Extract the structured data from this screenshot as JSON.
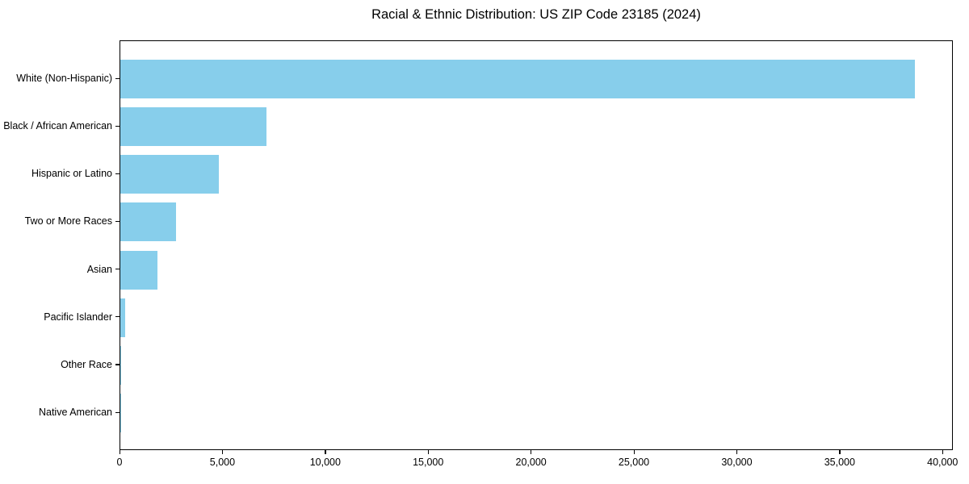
{
  "chart_data": {
    "type": "bar",
    "orientation": "horizontal",
    "title": "Racial & Ethnic Distribution: US ZIP Code 23185 (2024)",
    "categories": [
      "White (Non-Hispanic)",
      "Black / African American",
      "Hispanic or Latino",
      "Two or More Races",
      "Asian",
      "Pacific Islander",
      "Other Race",
      "Native American"
    ],
    "values": [
      38600,
      7100,
      4800,
      2700,
      1800,
      235,
      50,
      25
    ],
    "xlabel": "",
    "ylabel": "",
    "xlim": [
      0,
      40500
    ],
    "x_ticks": [
      0,
      5000,
      10000,
      15000,
      20000,
      25000,
      30000,
      35000,
      40000
    ],
    "x_tick_labels": [
      "0",
      "5,000",
      "10,000",
      "15,000",
      "20,000",
      "25,000",
      "30,000",
      "35,000",
      "40,000"
    ],
    "bar_color": "#87CEEB",
    "text_color": "#000000",
    "spine_color": "#000000",
    "background_color": "#ffffff",
    "grid": false,
    "legend": "none"
  }
}
